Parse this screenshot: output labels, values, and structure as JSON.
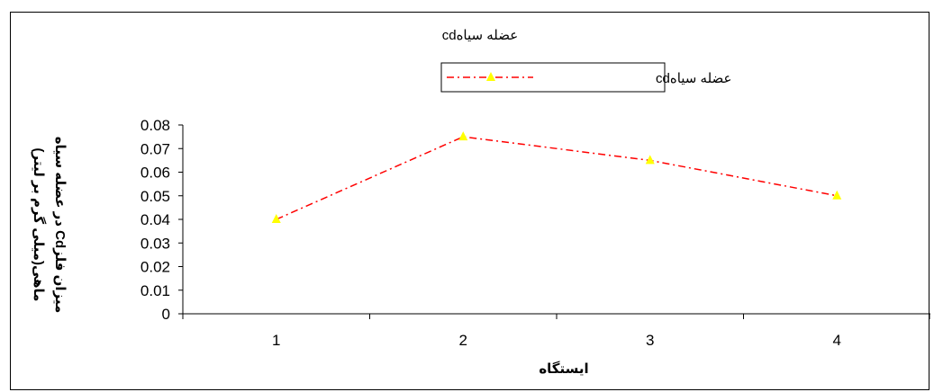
{
  "chart_data": {
    "type": "line",
    "title": "عضله سیاهcd",
    "xlabel": "ایستگاه",
    "ylabel_lines": [
      "میزان فلزCd در عضله سیاه",
      "ماهی(میلی گرم بر لیتر)"
    ],
    "categories": [
      "1",
      "2",
      "3",
      "4"
    ],
    "y_ticks": [
      "0",
      "0.01",
      "0.02",
      "0.03",
      "0.04",
      "0.05",
      "0.06",
      "0.07",
      "0.08"
    ],
    "ylim": [
      0,
      0.08
    ],
    "series": [
      {
        "name": "عضله سیاهcd",
        "values": [
          0.04,
          0.075,
          0.065,
          0.05
        ],
        "color": "#ff0000",
        "marker_color": "#ffff00",
        "marker": "triangle",
        "line_style": "dash-dot"
      }
    ],
    "legend_position": "top-center",
    "grid": false
  }
}
